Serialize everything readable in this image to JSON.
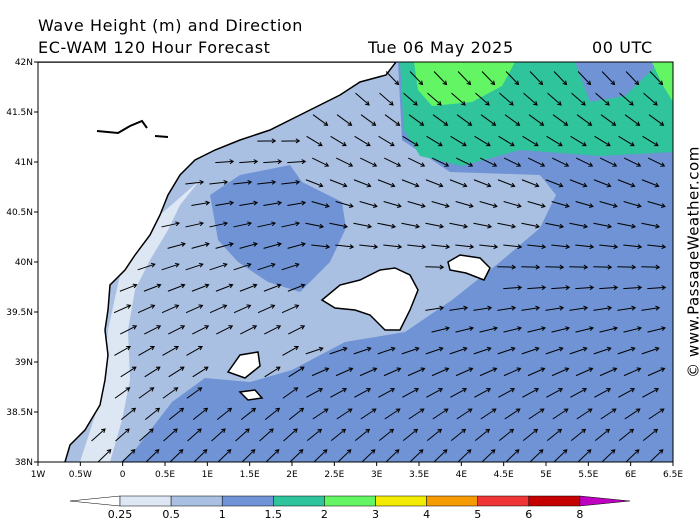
{
  "header": {
    "title": "Wave Height (m) and Direction",
    "model": "EC-WAM 120 Hour Forecast",
    "date": "Tue 06 May 2025",
    "time": "00 UTC"
  },
  "axes": {
    "lat_labels": [
      "42N",
      "41.5N",
      "41N",
      "40.5N",
      "40N",
      "39.5N",
      "39N",
      "38.5N",
      "38N"
    ],
    "lon_labels": [
      "1W",
      "0.5W",
      "0",
      "0.5E",
      "1E",
      "1.5E",
      "2E",
      "2.5E",
      "3E",
      "3.5E",
      "4E",
      "4.5E",
      "5E",
      "5.5E",
      "6E",
      "6.5E"
    ]
  },
  "colorbar": {
    "labels": [
      "0.25",
      "0.5",
      "1",
      "1.5",
      "2",
      "3",
      "4",
      "5",
      "6",
      "8"
    ],
    "colors": [
      "#ffffff",
      "#dde6f3",
      "#a9c0e2",
      "#6f93d4",
      "#2fc49c",
      "#64f564",
      "#f2ea00",
      "#f59a00",
      "#ee3434",
      "#c40000",
      "#c000c0"
    ]
  },
  "watermark": "© www.PassageWeather.com"
}
